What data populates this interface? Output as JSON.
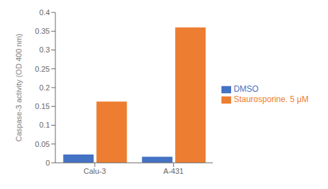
{
  "chart_data": {
    "type": "bar",
    "categories": [
      "Calu-3",
      "A-431"
    ],
    "series": [
      {
        "name": "DMSO",
        "color": "#4472C4",
        "values": [
          0.022,
          0.016
        ]
      },
      {
        "name": "Staurosporine. 5 μM",
        "color": "#ED7D31",
        "values": [
          0.163,
          0.36
        ]
      }
    ],
    "ylabel": "Caspase-3 activity (OD 400 nm)",
    "ylim": [
      0,
      0.4
    ],
    "yticks": [
      0,
      0.05,
      0.1,
      0.15,
      0.2,
      0.25,
      0.3,
      0.35,
      0.4
    ],
    "grid": false,
    "legend": "right"
  }
}
